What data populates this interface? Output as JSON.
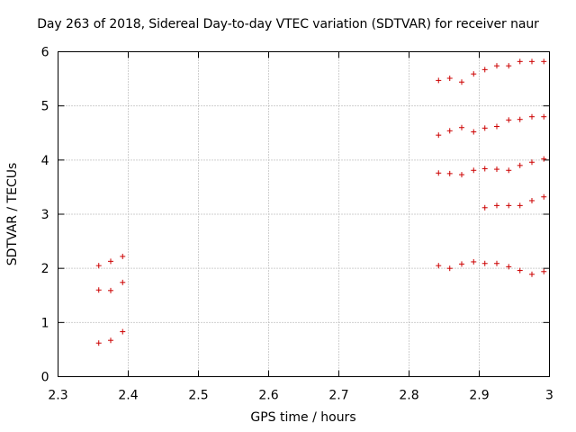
{
  "chart_data": {
    "type": "scatter",
    "title": "Day 263 of 2018, Sidereal Day-to-day VTEC variation (SDTVAR) for receiver naur",
    "xlabel": "GPS time / hours",
    "ylabel": "SDTVAR / TECUs",
    "xlim": [
      2.3,
      3.0
    ],
    "ylim": [
      0,
      6
    ],
    "xticks": [
      "2.3",
      "2.4",
      "2.5",
      "2.6",
      "2.7",
      "2.8",
      "2.9",
      "3"
    ],
    "yticks": [
      "0",
      "1",
      "2",
      "3",
      "4",
      "5",
      "6"
    ],
    "grid": true,
    "marker": "+",
    "series": [
      {
        "name": "SDTVAR",
        "color": "#cc0000",
        "points": [
          [
            2.358,
            0.62
          ],
          [
            2.358,
            1.6
          ],
          [
            2.358,
            2.05
          ],
          [
            2.375,
            0.67
          ],
          [
            2.375,
            1.59
          ],
          [
            2.375,
            2.13
          ],
          [
            2.392,
            0.83
          ],
          [
            2.392,
            1.74
          ],
          [
            2.392,
            2.22
          ],
          [
            2.842,
            2.05
          ],
          [
            2.842,
            3.76
          ],
          [
            2.842,
            4.46
          ],
          [
            2.842,
            5.47
          ],
          [
            2.858,
            2.0
          ],
          [
            2.858,
            3.75
          ],
          [
            2.858,
            4.54
          ],
          [
            2.858,
            5.51
          ],
          [
            2.875,
            2.08
          ],
          [
            2.875,
            3.73
          ],
          [
            2.875,
            4.6
          ],
          [
            2.875,
            5.44
          ],
          [
            2.892,
            2.12
          ],
          [
            2.892,
            3.81
          ],
          [
            2.892,
            4.52
          ],
          [
            2.892,
            5.59
          ],
          [
            2.908,
            2.09
          ],
          [
            2.908,
            3.12
          ],
          [
            2.908,
            3.84
          ],
          [
            2.908,
            4.59
          ],
          [
            2.908,
            5.67
          ],
          [
            2.925,
            2.09
          ],
          [
            2.925,
            3.16
          ],
          [
            2.925,
            3.83
          ],
          [
            2.925,
            4.62
          ],
          [
            2.925,
            5.74
          ],
          [
            2.942,
            2.03
          ],
          [
            2.942,
            3.16
          ],
          [
            2.942,
            3.81
          ],
          [
            2.942,
            4.74
          ],
          [
            2.942,
            5.74
          ],
          [
            2.958,
            1.96
          ],
          [
            2.958,
            3.16
          ],
          [
            2.958,
            3.9
          ],
          [
            2.958,
            4.75
          ],
          [
            2.958,
            5.82
          ],
          [
            2.975,
            1.89
          ],
          [
            2.975,
            3.25
          ],
          [
            2.975,
            3.96
          ],
          [
            2.975,
            4.8
          ],
          [
            2.975,
            5.82
          ],
          [
            2.992,
            1.94
          ],
          [
            2.992,
            3.32
          ],
          [
            2.992,
            4.02
          ],
          [
            2.992,
            4.8
          ],
          [
            2.992,
            5.82
          ]
        ]
      }
    ]
  }
}
